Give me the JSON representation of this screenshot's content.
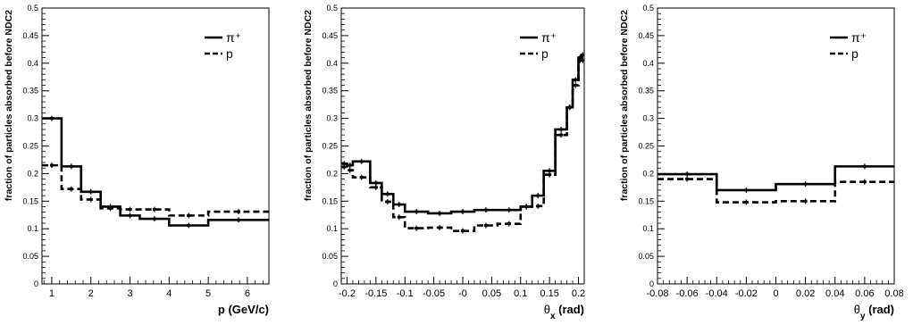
{
  "chart_data": [
    {
      "type": "line",
      "panel": "p",
      "xlabel": "p (GeV/c)",
      "ylabel": "fraction of particles absorbed before NDC2",
      "xlim": [
        0.75,
        6.55
      ],
      "ylim": [
        0,
        0.5
      ],
      "xticks": [
        1,
        2,
        3,
        4,
        5,
        6
      ],
      "xtick_labels": [
        "1",
        "2",
        "3",
        "4",
        "5",
        "6"
      ],
      "yticks": [
        0,
        0.05,
        0.1,
        0.15,
        0.2,
        0.25,
        0.3,
        0.35,
        0.4,
        0.45,
        0.5
      ],
      "ytick_labels": [
        "0",
        "0.05",
        "0.1",
        "0.15",
        "0.2",
        "0.25",
        "0.3",
        "0.35",
        "0.4",
        "0.45",
        "0.5"
      ],
      "legend": {
        "position": "top-right",
        "entries": [
          {
            "label": "π⁺",
            "style": "solid"
          },
          {
            "label": "p",
            "style": "dashed"
          }
        ]
      },
      "series": [
        {
          "name": "π⁺",
          "style": "solid",
          "edges": [
            0.75,
            1.25,
            1.75,
            2.25,
            2.75,
            3.25,
            4.0,
            5.0,
            6.55
          ],
          "values": [
            0.3,
            0.213,
            0.167,
            0.14,
            0.124,
            0.118,
            0.106,
            0.116
          ]
        },
        {
          "name": "p",
          "style": "dashed",
          "edges": [
            0.75,
            1.25,
            1.75,
            2.25,
            2.75,
            3.25,
            4.0,
            5.0,
            6.55
          ],
          "values": [
            0.215,
            0.172,
            0.153,
            0.137,
            0.135,
            0.135,
            0.124,
            0.131
          ]
        }
      ]
    },
    {
      "type": "line",
      "panel": "theta_x",
      "xlabel": "θx (rad)",
      "ylabel": "fraction of particles absorbed before NDC2",
      "xlim": [
        -0.21,
        0.21
      ],
      "ylim": [
        0,
        0.5
      ],
      "xticks": [
        -0.2,
        -0.15,
        -0.1,
        -0.05,
        0,
        0.05,
        0.1,
        0.15,
        0.2
      ],
      "xtick_labels": [
        "-0.2",
        "-0.15",
        "-0.1",
        "-0.05",
        "-0",
        "0.05",
        "0.1",
        "0.15",
        "0.2"
      ],
      "yticks": [
        0,
        0.05,
        0.1,
        0.15,
        0.2,
        0.25,
        0.3,
        0.35,
        0.4,
        0.45,
        0.5
      ],
      "ytick_labels": [
        "0",
        "0.05",
        "0.1",
        "0.15",
        "0.2",
        "0.25",
        "0.3",
        "0.35",
        "0.4",
        "0.45",
        "0.5"
      ],
      "legend": {
        "position": "top-right",
        "entries": [
          {
            "label": "π⁺",
            "style": "solid"
          },
          {
            "label": "p",
            "style": "dashed"
          }
        ]
      },
      "series": [
        {
          "name": "π⁺",
          "style": "solid",
          "edges": [
            -0.21,
            -0.2,
            -0.19,
            -0.16,
            -0.14,
            -0.12,
            -0.1,
            -0.06,
            -0.02,
            0.02,
            0.06,
            0.1,
            0.12,
            0.14,
            0.16,
            0.18,
            0.19,
            0.2,
            0.205,
            0.21
          ],
          "values": [
            0.218,
            0.215,
            0.222,
            0.183,
            0.163,
            0.144,
            0.131,
            0.128,
            0.131,
            0.134,
            0.134,
            0.14,
            0.16,
            0.205,
            0.28,
            0.32,
            0.37,
            0.41,
            0.415
          ]
        },
        {
          "name": "p",
          "style": "dashed",
          "edges": [
            -0.21,
            -0.2,
            -0.19,
            -0.16,
            -0.14,
            -0.12,
            -0.1,
            -0.06,
            -0.02,
            0.02,
            0.06,
            0.1,
            0.12,
            0.14,
            0.16,
            0.18,
            0.19,
            0.2,
            0.205,
            0.21
          ],
          "values": [
            0.212,
            0.206,
            0.193,
            0.175,
            0.149,
            0.121,
            0.101,
            0.102,
            0.096,
            0.106,
            0.109,
            0.14,
            0.141,
            0.198,
            0.27,
            0.32,
            0.36,
            0.405,
            0.405
          ]
        }
      ]
    },
    {
      "type": "line",
      "panel": "theta_y",
      "xlabel": "θy (rad)",
      "ylabel": "fraction of particles absorbed before NDC2",
      "xlim": [
        -0.08,
        0.08
      ],
      "ylim": [
        0,
        0.5
      ],
      "xticks": [
        -0.08,
        -0.06,
        -0.04,
        -0.02,
        0,
        0.02,
        0.04,
        0.06,
        0.08
      ],
      "xtick_labels": [
        "-0.08",
        "-0.06",
        "-0.04",
        "-0.02",
        "0",
        "0.02",
        "0.04",
        "0.06",
        "0.08"
      ],
      "yticks": [
        0,
        0.05,
        0.1,
        0.15,
        0.2,
        0.25,
        0.3,
        0.35,
        0.4,
        0.45,
        0.5
      ],
      "ytick_labels": [
        "0",
        "0.05",
        "0.1",
        "0.15",
        "0.2",
        "0.25",
        "0.3",
        "0.35",
        "0.4",
        "0.45",
        "0.5"
      ],
      "legend": {
        "position": "top-right",
        "entries": [
          {
            "label": "π⁺",
            "style": "solid"
          },
          {
            "label": "p",
            "style": "dashed"
          }
        ]
      },
      "series": [
        {
          "name": "π⁺",
          "style": "solid",
          "edges": [
            -0.08,
            -0.04,
            0.0,
            0.04,
            0.08
          ],
          "values": [
            0.199,
            0.17,
            0.181,
            0.213
          ]
        },
        {
          "name": "p",
          "style": "dashed",
          "edges": [
            -0.08,
            -0.04,
            0.0,
            0.04,
            0.08
          ],
          "values": [
            0.19,
            0.148,
            0.15,
            0.185
          ]
        }
      ]
    }
  ]
}
